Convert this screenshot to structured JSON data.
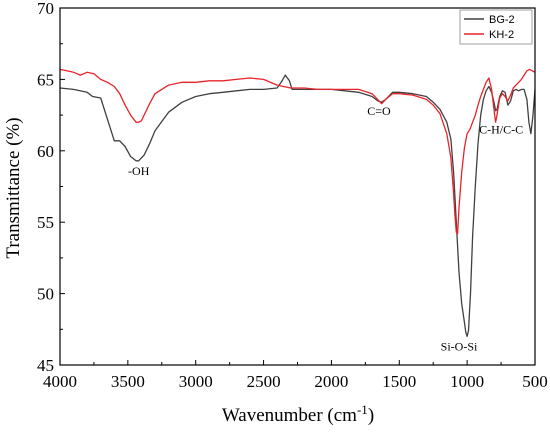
{
  "chart_data": {
    "type": "line",
    "title": "",
    "xlabel": "Wavenumber (cm",
    "xlabel_sup": "-1",
    "xlabel_close": ")",
    "ylabel": "Transmittance (%)",
    "xlim": [
      4000,
      500
    ],
    "ylim": [
      45,
      70
    ],
    "x_ticks": [
      "4000",
      "3500",
      "3000",
      "2500",
      "2000",
      "1500",
      "1000",
      "500"
    ],
    "x_tick_values": [
      4000,
      3500,
      3000,
      2500,
      2000,
      1500,
      1000,
      500
    ],
    "y_ticks": [
      "45",
      "50",
      "55",
      "60",
      "65",
      "70"
    ],
    "y_tick_values": [
      45,
      50,
      55,
      60,
      65,
      70
    ],
    "grid": false,
    "legend_position": "top-right",
    "series": [
      {
        "name": "BG-2",
        "color": "#404040",
        "x": [
          4000,
          3900,
          3800,
          3760,
          3700,
          3650,
          3600,
          3560,
          3520,
          3480,
          3440,
          3420,
          3380,
          3340,
          3300,
          3200,
          3100,
          3000,
          2900,
          2800,
          2700,
          2600,
          2500,
          2400,
          2370,
          2340,
          2310,
          2290,
          2200,
          2100,
          2000,
          1900,
          1800,
          1700,
          1660,
          1630,
          1600,
          1550,
          1500,
          1400,
          1300,
          1250,
          1200,
          1150,
          1120,
          1100,
          1080,
          1060,
          1040,
          1020,
          1010,
          1000,
          990,
          975,
          960,
          940,
          920,
          900,
          880,
          860,
          840,
          820,
          800,
          790,
          780,
          760,
          740,
          720,
          700,
          680,
          660,
          640,
          620,
          600,
          580,
          560,
          545,
          530,
          515,
          500
        ],
        "y": [
          64.4,
          64.3,
          64.1,
          63.8,
          63.7,
          62.2,
          60.7,
          60.7,
          60.3,
          59.6,
          59.3,
          59.3,
          59.7,
          60.5,
          61.4,
          62.7,
          63.4,
          63.8,
          64.0,
          64.1,
          64.2,
          64.3,
          64.3,
          64.4,
          64.8,
          65.3,
          64.9,
          64.3,
          64.3,
          64.3,
          64.3,
          64.2,
          64.1,
          63.8,
          63.5,
          63.4,
          63.6,
          64.1,
          64.1,
          64.0,
          63.8,
          63.4,
          62.9,
          62.0,
          60.8,
          58.5,
          55.0,
          51.5,
          49.3,
          48.0,
          47.3,
          47.0,
          47.4,
          50.0,
          54.0,
          57.5,
          60.5,
          62.5,
          63.6,
          64.2,
          64.5,
          64.1,
          63.3,
          62.8,
          62.9,
          63.8,
          64.2,
          64.1,
          63.2,
          63.5,
          64.2,
          64.3,
          64.2,
          64.3,
          64.3,
          63.6,
          62.0,
          61.2,
          62.5,
          64.3
        ]
      },
      {
        "name": "KH-2",
        "color": "#e8242a",
        "x": [
          4000,
          3950,
          3900,
          3850,
          3800,
          3750,
          3700,
          3650,
          3600,
          3560,
          3520,
          3480,
          3440,
          3420,
          3400,
          3380,
          3340,
          3300,
          3200,
          3100,
          3000,
          2900,
          2800,
          2700,
          2600,
          2500,
          2400,
          2300,
          2200,
          2100,
          2000,
          1900,
          1800,
          1700,
          1660,
          1630,
          1600,
          1550,
          1500,
          1400,
          1300,
          1250,
          1200,
          1150,
          1120,
          1100,
          1090,
          1080,
          1070,
          1060,
          1040,
          1020,
          1000,
          980,
          960,
          940,
          920,
          900,
          880,
          860,
          840,
          820,
          800,
          790,
          780,
          760,
          740,
          720,
          700,
          680,
          660,
          640,
          620,
          600,
          580,
          560,
          540,
          520,
          500
        ],
        "y": [
          65.7,
          65.6,
          65.5,
          65.3,
          65.5,
          65.4,
          65.0,
          64.8,
          64.5,
          64.0,
          63.2,
          62.5,
          62.0,
          62.0,
          62.1,
          62.5,
          63.3,
          64.0,
          64.6,
          64.8,
          64.8,
          64.9,
          64.9,
          65.0,
          65.1,
          65.0,
          64.6,
          64.4,
          64.4,
          64.3,
          64.3,
          64.3,
          64.3,
          64.0,
          63.6,
          63.3,
          63.6,
          64.0,
          64.0,
          63.9,
          63.6,
          63.2,
          62.6,
          61.2,
          59.5,
          57.0,
          55.5,
          54.3,
          54.2,
          56.0,
          58.5,
          60.2,
          61.2,
          61.5,
          62.0,
          62.5,
          63.2,
          63.8,
          64.3,
          64.8,
          65.1,
          64.3,
          62.7,
          62.0,
          62.5,
          63.7,
          64.0,
          63.8,
          63.5,
          63.9,
          64.4,
          64.6,
          64.8,
          65.0,
          65.3,
          65.6,
          65.7,
          65.6,
          65.5
        ]
      }
    ],
    "annotations": [
      {
        "text": "-OH",
        "x": 3420,
        "y": 58.3
      },
      {
        "text": "C=O",
        "x": 1650,
        "y": 62.5
      },
      {
        "text": "Si-O-Si",
        "x": 1060,
        "y": 46.0
      },
      {
        "text": "C-H/C-C",
        "x": 750,
        "y": 61.2
      }
    ]
  }
}
